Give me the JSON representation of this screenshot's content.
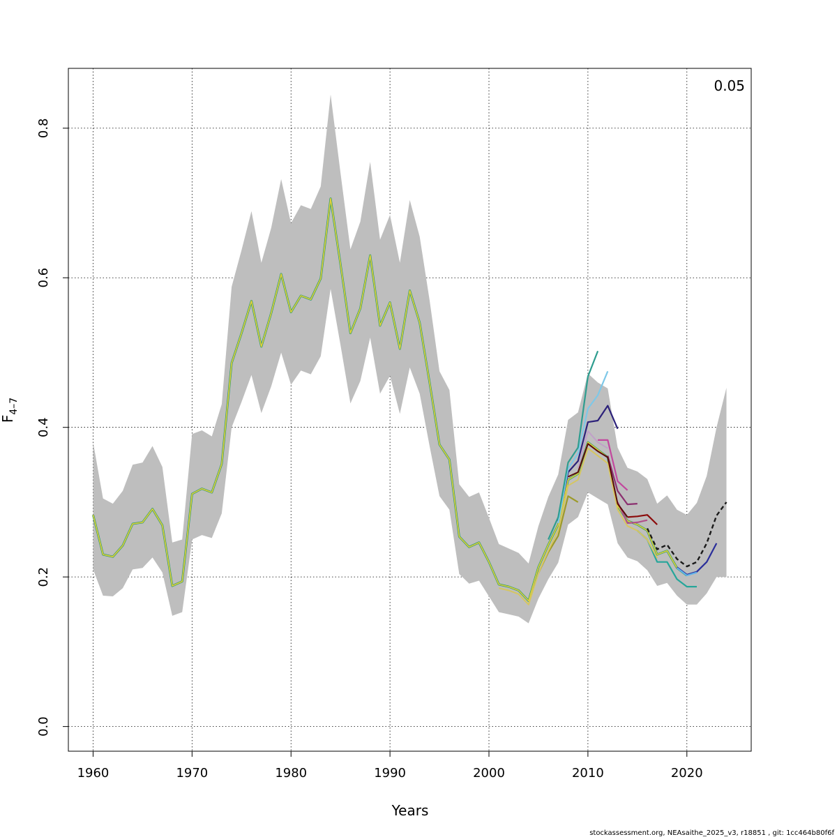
{
  "chart_data": {
    "type": "line",
    "xlabel": "Years",
    "ylabel_main": "F",
    "ylabel_sub": "4–7",
    "corner_label": "0.05",
    "footer": "stockassessment.org, NEAsaithe_2025_v3, r18851 , git: 1cc464b80f6f",
    "xlim": [
      1957.5,
      2026.5
    ],
    "ylim": [
      -0.033,
      0.88
    ],
    "x_ticks": [
      1960,
      1970,
      1980,
      1990,
      2000,
      2010,
      2020
    ],
    "x_tick_labels": [
      "1960",
      "1970",
      "1980",
      "1990",
      "2000",
      "2010",
      "2020"
    ],
    "y_ticks": [
      0.0,
      0.2,
      0.4,
      0.6,
      0.8
    ],
    "y_tick_labels": [
      "0.0",
      "0.2",
      "0.4",
      "0.6",
      "0.8"
    ],
    "grid": true,
    "band_color": "#bebebe",
    "band": {
      "x": [
        1960,
        1961,
        1962,
        1963,
        1964,
        1965,
        1966,
        1967,
        1968,
        1969,
        1970,
        1971,
        1972,
        1973,
        1974,
        1975,
        1976,
        1977,
        1978,
        1979,
        1980,
        1981,
        1982,
        1983,
        1984,
        1985,
        1986,
        1987,
        1988,
        1989,
        1990,
        1991,
        1992,
        1993,
        1994,
        1995,
        1996,
        1997,
        1998,
        1999,
        2000,
        2001,
        2002,
        2003,
        2004,
        2005,
        2006,
        2007,
        2008,
        2009,
        2010,
        2011,
        2012,
        2013,
        2014,
        2015,
        2016,
        2017,
        2018,
        2019,
        2020,
        2021,
        2022,
        2023,
        2024
      ],
      "upper": [
        0.38,
        0.305,
        0.298,
        0.315,
        0.35,
        0.353,
        0.375,
        0.347,
        0.246,
        0.25,
        0.391,
        0.396,
        0.388,
        0.431,
        0.588,
        0.637,
        0.689,
        0.62,
        0.667,
        0.732,
        0.673,
        0.697,
        0.692,
        0.722,
        0.845,
        0.74,
        0.638,
        0.675,
        0.755,
        0.651,
        0.684,
        0.62,
        0.704,
        0.655,
        0.57,
        0.475,
        0.45,
        0.324,
        0.307,
        0.313,
        0.279,
        0.244,
        0.238,
        0.232,
        0.218,
        0.268,
        0.307,
        0.337,
        0.41,
        0.42,
        0.472,
        0.46,
        0.452,
        0.373,
        0.346,
        0.341,
        0.331,
        0.298,
        0.309,
        0.29,
        0.283,
        0.299,
        0.335,
        0.4,
        0.453
      ],
      "lower": [
        0.21,
        0.175,
        0.174,
        0.185,
        0.21,
        0.212,
        0.226,
        0.206,
        0.148,
        0.153,
        0.25,
        0.256,
        0.252,
        0.285,
        0.4,
        0.434,
        0.47,
        0.419,
        0.455,
        0.5,
        0.457,
        0.476,
        0.471,
        0.495,
        0.585,
        0.51,
        0.432,
        0.462,
        0.52,
        0.445,
        0.469,
        0.418,
        0.48,
        0.445,
        0.375,
        0.308,
        0.29,
        0.204,
        0.191,
        0.195,
        0.174,
        0.153,
        0.15,
        0.147,
        0.138,
        0.171,
        0.197,
        0.219,
        0.27,
        0.28,
        0.313,
        0.305,
        0.297,
        0.245,
        0.226,
        0.221,
        0.209,
        0.188,
        0.192,
        0.175,
        0.163,
        0.163,
        0.178,
        0.2,
        0.2
      ]
    },
    "base_series": {
      "x": [
        1960,
        1961,
        1962,
        1963,
        1964,
        1965,
        1966,
        1967,
        1968,
        1969,
        1970,
        1971,
        1972,
        1973,
        1974,
        1975,
        1976,
        1977,
        1978,
        1979,
        1980,
        1981,
        1982,
        1983,
        1984,
        1985,
        1986,
        1987,
        1988,
        1989,
        1990,
        1991,
        1992,
        1993,
        1994,
        1995,
        1996,
        1997,
        1998,
        1999,
        2000,
        2001,
        2002,
        2003,
        2004,
        2005,
        2006,
        2007,
        2008,
        2009,
        2010,
        2011,
        2012,
        2013,
        2014,
        2015,
        2016,
        2017,
        2018,
        2019,
        2020
      ],
      "y": [
        0.283,
        0.23,
        0.227,
        0.242,
        0.271,
        0.273,
        0.291,
        0.269,
        0.188,
        0.194,
        0.311,
        0.318,
        0.313,
        0.351,
        0.486,
        0.526,
        0.569,
        0.508,
        0.553,
        0.605,
        0.554,
        0.576,
        0.571,
        0.599,
        0.706,
        0.618,
        0.526,
        0.559,
        0.63,
        0.536,
        0.567,
        0.505,
        0.583,
        0.54,
        0.46,
        0.377,
        0.357,
        0.254,
        0.24,
        0.246,
        0.22,
        0.19,
        0.187,
        0.182,
        0.168,
        0.213,
        0.243,
        0.27,
        0.33,
        0.338,
        0.38,
        0.37,
        0.36,
        0.295,
        0.275,
        0.27,
        0.262,
        0.23,
        0.235,
        0.212,
        0.202
      ]
    },
    "series": [
      {
        "color": "#1a1a1a",
        "dash": true,
        "width": 2.4,
        "x": [
          2016,
          2017,
          2018,
          2019,
          2020,
          2021,
          2022,
          2023,
          2024
        ],
        "y": [
          0.265,
          0.237,
          0.243,
          0.224,
          0.214,
          0.22,
          0.245,
          0.282,
          0.3
        ]
      },
      {
        "color": "#2a2e9a",
        "dash": false,
        "width": 2.2,
        "x": [
          2019,
          2020,
          2021,
          2022,
          2023
        ],
        "y": [
          0.213,
          0.203,
          0.207,
          0.22,
          0.245
        ]
      },
      {
        "color": "#62b3e8",
        "dash": false,
        "width": 2.2,
        "x": [
          2019,
          2020,
          2021
        ],
        "y": [
          0.212,
          0.202,
          0.206
        ]
      },
      {
        "color": "#26a69a",
        "dash": false,
        "width": 2.2,
        "x": [
          2015,
          2016,
          2017,
          2018,
          2019,
          2020,
          2021
        ],
        "y": [
          0.262,
          0.25,
          0.22,
          0.22,
          0.197,
          0.187,
          0.187
        ]
      },
      {
        "color": "#8c0c0c",
        "dash": false,
        "width": 2.2,
        "x": [
          2014,
          2015,
          2016,
          2017
        ],
        "y": [
          0.28,
          0.281,
          0.283,
          0.27
        ]
      },
      {
        "color": "#b0508a",
        "dash": false,
        "width": 2.2,
        "x": [
          2013,
          2014,
          2015,
          2016
        ],
        "y": [
          0.3,
          0.272,
          0.273,
          0.276
        ]
      },
      {
        "color": "#8b2f6f",
        "dash": false,
        "width": 2.2,
        "x": [
          2012,
          2013,
          2014,
          2015
        ],
        "y": [
          0.362,
          0.315,
          0.297,
          0.298
        ]
      },
      {
        "color": "#c2489e",
        "dash": false,
        "width": 2.2,
        "x": [
          2011,
          2012,
          2013,
          2014
        ],
        "y": [
          0.383,
          0.383,
          0.328,
          0.316
        ]
      },
      {
        "color": "#2c217a",
        "dash": false,
        "width": 2.2,
        "x": [
          2007,
          2008,
          2009,
          2010,
          2011,
          2012,
          2013
        ],
        "y": [
          0.275,
          0.34,
          0.355,
          0.407,
          0.409,
          0.429,
          0.398
        ]
      },
      {
        "color": "#7ec8e8",
        "dash": false,
        "width": 2.2,
        "x": [
          2007,
          2008,
          2009,
          2010,
          2011,
          2012
        ],
        "y": [
          0.272,
          0.345,
          0.365,
          0.425,
          0.443,
          0.475
        ]
      },
      {
        "color": "#2e9d8f",
        "dash": false,
        "width": 2.2,
        "x": [
          2006,
          2007,
          2008,
          2009,
          2010,
          2011
        ],
        "y": [
          0.25,
          0.28,
          0.353,
          0.373,
          0.468,
          0.502
        ]
      },
      {
        "color": "#9c9a2a",
        "dash": false,
        "width": 2.2,
        "x": [
          2005,
          2006,
          2007,
          2008,
          2009
        ],
        "y": [
          0.205,
          0.233,
          0.255,
          0.308,
          0.3
        ]
      },
      {
        "color": "#d6c660",
        "dash": false,
        "width": 2.0,
        "x": [
          2001,
          2002,
          2003,
          2004,
          2005,
          2006,
          2007,
          2008,
          2009,
          2010,
          2011,
          2012,
          2013,
          2014,
          2015,
          2016,
          2017
        ],
        "y": [
          0.185,
          0.182,
          0.177,
          0.163,
          0.205,
          0.235,
          0.262,
          0.322,
          0.33,
          0.372,
          0.362,
          0.352,
          0.29,
          0.268,
          0.262,
          0.25,
          0.225
        ]
      },
      {
        "color": "#c0a0c8",
        "dash": false,
        "width": 2.0,
        "x": [
          2009,
          2010,
          2011,
          2012
        ],
        "y": [
          0.345,
          0.395,
          0.38,
          0.372
        ]
      },
      {
        "color": "#5a0a0a",
        "dash": false,
        "width": 2.0,
        "x": [
          2008,
          2009,
          2010,
          2011,
          2012,
          2013,
          2014
        ],
        "y": [
          0.334,
          0.34,
          0.378,
          0.368,
          0.36,
          0.298,
          0.28
        ]
      }
    ]
  }
}
